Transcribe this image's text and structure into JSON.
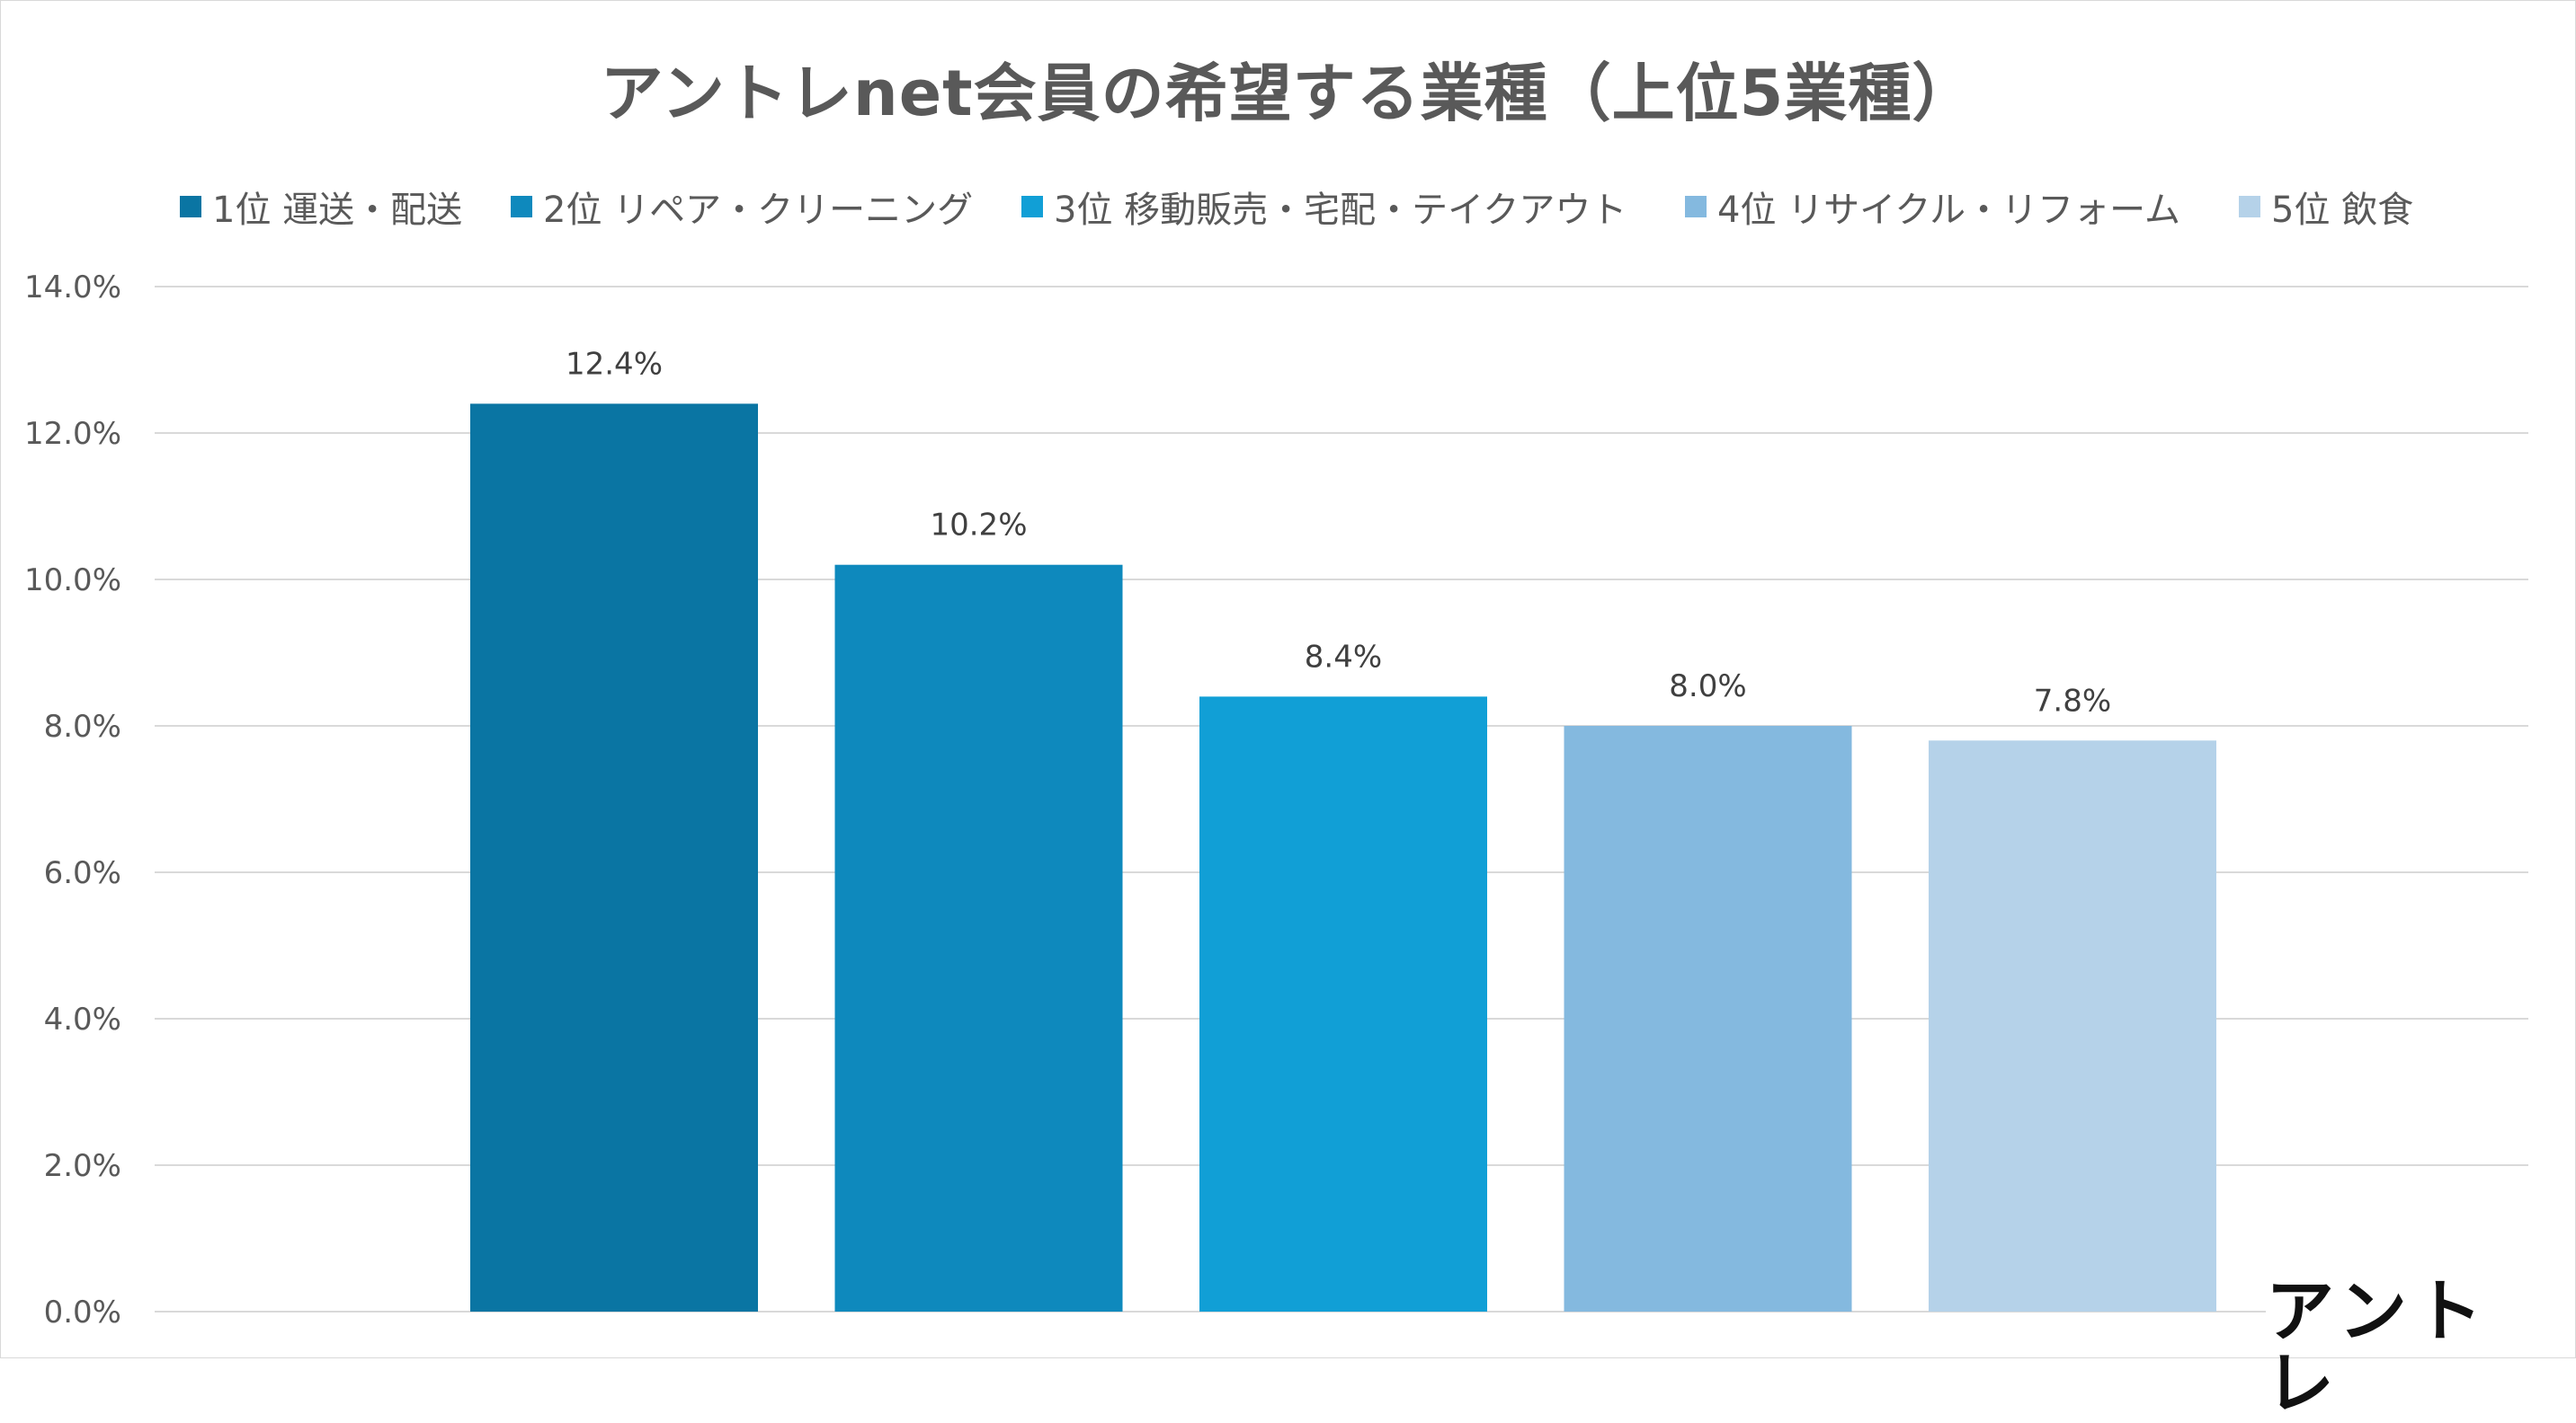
{
  "chart_data": {
    "type": "bar",
    "title": "アントレnet会員の希望する業種（上位5業種）",
    "categories": [
      "1位 運送・配送",
      "2位 リペア・クリーニング",
      "3位 移動販売・宅配・テイクアウト",
      "4位 リサイクル・リフォーム",
      "5位 飲食"
    ],
    "values": [
      12.4,
      10.2,
      8.4,
      8.0,
      7.8
    ],
    "data_labels": [
      "12.4%",
      "10.2%",
      "8.4%",
      "8.0%",
      "7.8%"
    ],
    "colors": [
      "#0a75a3",
      "#0e89bd",
      "#119fd6",
      "#84b9df",
      "#b5d2e9"
    ],
    "ylim": [
      0,
      14
    ],
    "yticks": [
      0,
      2,
      4,
      6,
      8,
      10,
      12,
      14
    ],
    "ytick_labels": [
      "0.0%",
      "2.0%",
      "4.0%",
      "6.0%",
      "8.0%",
      "10.0%",
      "12.0%",
      "14.0%"
    ],
    "xlabel": "",
    "ylabel": "",
    "grid": true,
    "legend_position": "top"
  },
  "logo": {
    "text": "アントレ"
  },
  "colors": {
    "gridline": "#d9d9d9",
    "text": "#595959"
  }
}
